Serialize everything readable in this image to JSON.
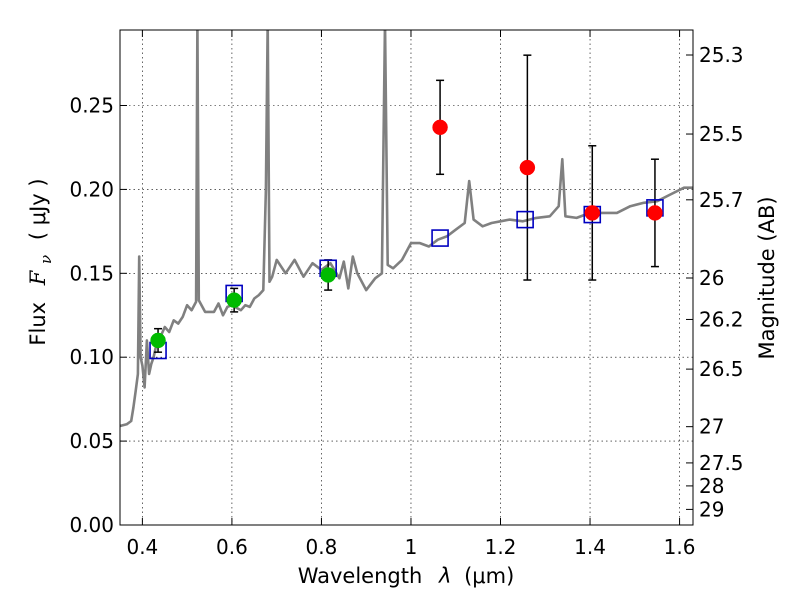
{
  "chart_data": {
    "type": "scatter",
    "xlabel_text": "Wavelength",
    "xlabel_symbol": "λ",
    "xlabel_unit": "(μm)",
    "ylabel_text": "Flux",
    "ylabel_symbol": "F",
    "ylabel_subscript": "ν",
    "ylabel_unit": "( μJy )",
    "y2label": "Magnitude (AB)",
    "xlim": [
      0.35,
      1.63
    ],
    "ylim": [
      0.0,
      0.295
    ],
    "xticks": [
      0.4,
      0.6,
      0.8,
      1.0,
      1.2,
      1.4,
      1.6
    ],
    "xtick_labels": [
      "0.4",
      "0.6",
      "0.8",
      "1",
      "1.2",
      "1.4",
      "1.6"
    ],
    "yticks": [
      0.0,
      0.05,
      0.1,
      0.15,
      0.2,
      0.25
    ],
    "ytick_labels": [
      "0.00",
      "0.05",
      "0.10",
      "0.15",
      "0.20",
      "0.25"
    ],
    "y2ticks": [
      {
        "label": "25.3",
        "flux": 0.2801
      },
      {
        "label": "25.5",
        "flux": 0.233
      },
      {
        "label": "25.7",
        "flux": 0.1938
      },
      {
        "label": "26",
        "flux": 0.1472
      },
      {
        "label": "26.2",
        "flux": 0.1225
      },
      {
        "label": "26.5",
        "flux": 0.0929
      },
      {
        "label": "27",
        "flux": 0.0586
      },
      {
        "label": "27.5",
        "flux": 0.037
      },
      {
        "label": "28",
        "flux": 0.0233
      },
      {
        "label": "29",
        "flux": 0.0093
      }
    ],
    "grid": true,
    "series": [
      {
        "kind": "model_spectrum",
        "color": "#808080",
        "points": [
          [
            0.35,
            0.059
          ],
          [
            0.365,
            0.06
          ],
          [
            0.375,
            0.062
          ],
          [
            0.38,
            0.07
          ],
          [
            0.385,
            0.08
          ],
          [
            0.39,
            0.09
          ],
          [
            0.393,
            0.16
          ],
          [
            0.396,
            0.1
          ],
          [
            0.4,
            0.095
          ],
          [
            0.405,
            0.082
          ],
          [
            0.41,
            0.11
          ],
          [
            0.415,
            0.09
          ],
          [
            0.42,
            0.096
          ],
          [
            0.425,
            0.1
          ],
          [
            0.43,
            0.106
          ],
          [
            0.44,
            0.112
          ],
          [
            0.45,
            0.118
          ],
          [
            0.46,
            0.115
          ],
          [
            0.47,
            0.122
          ],
          [
            0.48,
            0.12
          ],
          [
            0.49,
            0.124
          ],
          [
            0.5,
            0.131
          ],
          [
            0.51,
            0.128
          ],
          [
            0.52,
            0.133
          ],
          [
            0.523,
            0.3
          ],
          [
            0.526,
            0.134
          ],
          [
            0.54,
            0.127
          ],
          [
            0.56,
            0.127
          ],
          [
            0.57,
            0.132
          ],
          [
            0.58,
            0.125
          ],
          [
            0.59,
            0.13
          ],
          [
            0.6,
            0.131
          ],
          [
            0.62,
            0.128
          ],
          [
            0.63,
            0.131
          ],
          [
            0.64,
            0.13
          ],
          [
            0.65,
            0.135
          ],
          [
            0.66,
            0.137
          ],
          [
            0.67,
            0.14
          ],
          [
            0.676,
            0.2
          ],
          [
            0.68,
            0.3
          ],
          [
            0.684,
            0.145
          ],
          [
            0.69,
            0.148
          ],
          [
            0.7,
            0.158
          ],
          [
            0.72,
            0.15
          ],
          [
            0.74,
            0.158
          ],
          [
            0.76,
            0.148
          ],
          [
            0.78,
            0.156
          ],
          [
            0.8,
            0.152
          ],
          [
            0.82,
            0.156
          ],
          [
            0.84,
            0.147
          ],
          [
            0.85,
            0.157
          ],
          [
            0.86,
            0.141
          ],
          [
            0.87,
            0.16
          ],
          [
            0.88,
            0.15
          ],
          [
            0.9,
            0.14
          ],
          [
            0.92,
            0.147
          ],
          [
            0.935,
            0.15
          ],
          [
            0.942,
            0.3
          ],
          [
            0.948,
            0.155
          ],
          [
            0.96,
            0.153
          ],
          [
            0.98,
            0.158
          ],
          [
            1.0,
            0.168
          ],
          [
            1.02,
            0.168
          ],
          [
            1.04,
            0.166
          ],
          [
            1.06,
            0.17
          ],
          [
            1.08,
            0.172
          ],
          [
            1.1,
            0.176
          ],
          [
            1.12,
            0.18
          ],
          [
            1.13,
            0.205
          ],
          [
            1.14,
            0.182
          ],
          [
            1.16,
            0.178
          ],
          [
            1.18,
            0.18
          ],
          [
            1.2,
            0.181
          ],
          [
            1.22,
            0.182
          ],
          [
            1.25,
            0.181
          ],
          [
            1.28,
            0.183
          ],
          [
            1.31,
            0.184
          ],
          [
            1.33,
            0.19
          ],
          [
            1.338,
            0.218
          ],
          [
            1.345,
            0.184
          ],
          [
            1.37,
            0.183
          ],
          [
            1.4,
            0.186
          ],
          [
            1.43,
            0.186
          ],
          [
            1.46,
            0.186
          ],
          [
            1.49,
            0.19
          ],
          [
            1.52,
            0.192
          ],
          [
            1.55,
            0.193
          ],
          [
            1.58,
            0.197
          ],
          [
            1.61,
            0.201
          ],
          [
            1.63,
            0.201
          ]
        ]
      },
      {
        "kind": "model_photometry",
        "marker": "open-square",
        "color": "#0000c0",
        "points": [
          {
            "x": 0.435,
            "y": 0.104
          },
          {
            "x": 0.605,
            "y": 0.138
          },
          {
            "x": 0.815,
            "y": 0.153
          },
          {
            "x": 1.065,
            "y": 0.171
          },
          {
            "x": 1.255,
            "y": 0.182
          },
          {
            "x": 1.405,
            "y": 0.185
          },
          {
            "x": 1.545,
            "y": 0.189
          }
        ]
      },
      {
        "kind": "observed_optical",
        "marker": "filled-circle",
        "color": "#00bb00",
        "points": [
          {
            "x": 0.435,
            "y": 0.11,
            "err": 0.007
          },
          {
            "x": 0.605,
            "y": 0.134,
            "err": 0.007
          },
          {
            "x": 0.815,
            "y": 0.149,
            "err": 0.009
          }
        ]
      },
      {
        "kind": "observed_nir",
        "marker": "filled-circle",
        "color": "#ff0000",
        "points": [
          {
            "x": 1.065,
            "y": 0.237,
            "err": 0.028
          },
          {
            "x": 1.26,
            "y": 0.213,
            "err": 0.067
          },
          {
            "x": 1.405,
            "y": 0.186,
            "err": 0.04
          },
          {
            "x": 1.545,
            "y": 0.186,
            "err": 0.032
          }
        ]
      }
    ]
  }
}
